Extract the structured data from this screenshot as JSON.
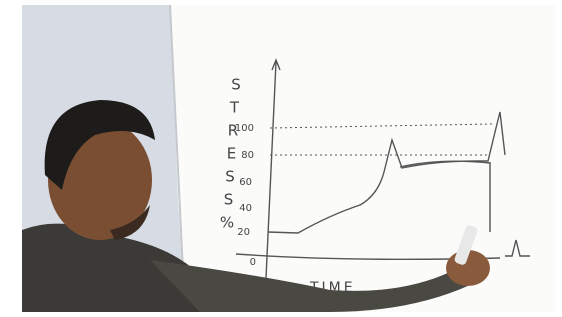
{
  "whiteboard": {
    "y_axis_letters": [
      "S",
      "T",
      "R",
      "E",
      "S",
      "S",
      "%"
    ],
    "y_ticks": [
      "100",
      "80",
      "60",
      "40",
      "20",
      "0"
    ],
    "x_axis_label": "TIME"
  }
}
